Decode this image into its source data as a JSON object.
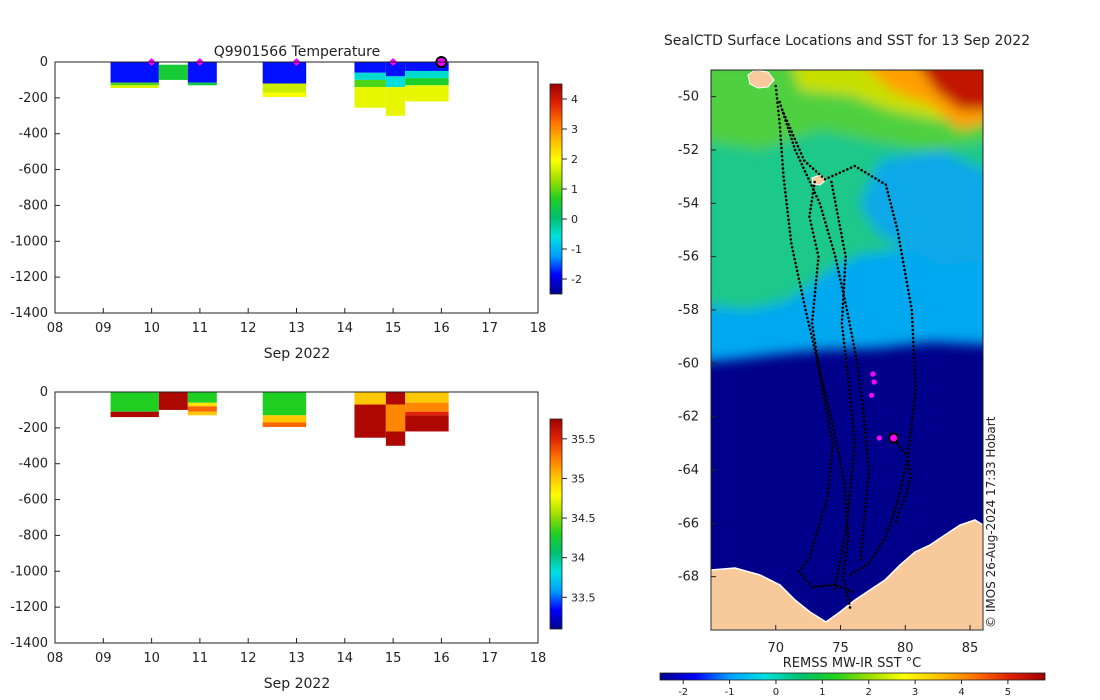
{
  "colors": {
    "land": "#f8c99a",
    "ocean_cold": "#00008b",
    "mark_magenta": "#ff00ff",
    "track": "#000000",
    "axis": "#222222",
    "ramp": [
      "#00008b",
      "#0000ff",
      "#00a0ff",
      "#00e0e0",
      "#00c070",
      "#20d020",
      "#a0e000",
      "#ffff00",
      "#ffc000",
      "#ff7000",
      "#e02000",
      "#a00000"
    ]
  },
  "chart_data": [
    {
      "type": "heatmap",
      "title": "Q9901566  Temperature",
      "xlabel": "Sep 2022",
      "ylabel": "",
      "xlim": [
        8,
        18
      ],
      "ylim": [
        -1400,
        0
      ],
      "xticks": [
        "08",
        "09",
        "10",
        "11",
        "12",
        "13",
        "14",
        "15",
        "16",
        "17",
        "18"
      ],
      "yticks": [
        "0",
        "-200",
        "-400",
        "-600",
        "-800",
        "-1000",
        "-1200",
        "-1400"
      ],
      "colorbar": {
        "range": [
          -2.5,
          4.5
        ],
        "ticks": [
          "4",
          "3",
          "2",
          "1",
          "0",
          "-1",
          "-2"
        ],
        "tick_values": [
          4,
          3,
          2,
          1,
          0,
          -1,
          -2
        ]
      },
      "profile_markers_day": [
        10,
        11,
        13,
        15,
        16
      ],
      "current_marker_day": 16,
      "profiles": [
        {
          "x0": 9.15,
          "x1": 10.15,
          "bands": [
            [
              0,
              -115,
              -1.8
            ],
            [
              -115,
              -130,
              0.9
            ],
            [
              -130,
              -145,
              1.7
            ]
          ]
        },
        {
          "x0": 10.15,
          "x1": 10.75,
          "bands": [
            [
              -15,
              -100,
              0.5
            ]
          ]
        },
        {
          "x0": 10.75,
          "x1": 11.35,
          "bands": [
            [
              0,
              -115,
              -1.8
            ],
            [
              -115,
              -130,
              0.4
            ]
          ]
        },
        {
          "x0": 12.3,
          "x1": 13.2,
          "bands": [
            [
              0,
              -120,
              -1.8
            ],
            [
              -120,
              -170,
              1.6
            ],
            [
              -170,
              -195,
              1.9
            ]
          ]
        },
        {
          "x0": 14.2,
          "x1": 14.85,
          "bands": [
            [
              0,
              -60,
              -1.8
            ],
            [
              -60,
              -100,
              -0.5
            ],
            [
              -100,
              -140,
              0.9
            ],
            [
              -140,
              -255,
              1.8
            ]
          ]
        },
        {
          "x0": 14.85,
          "x1": 15.25,
          "bands": [
            [
              0,
              -80,
              -1.8
            ],
            [
              -80,
              -140,
              -0.6
            ],
            [
              -140,
              -300,
              1.8
            ]
          ]
        },
        {
          "x0": 15.25,
          "x1": 16.15,
          "bands": [
            [
              0,
              -50,
              -1.8
            ],
            [
              -50,
              -90,
              -0.5
            ],
            [
              -90,
              -130,
              0.6
            ],
            [
              -130,
              -220,
              1.8
            ]
          ]
        }
      ]
    },
    {
      "type": "heatmap",
      "title": "",
      "xlabel": "Sep 2022",
      "ylabel": "",
      "xlim": [
        8,
        18
      ],
      "ylim": [
        -1400,
        0
      ],
      "xticks": [
        "08",
        "09",
        "10",
        "11",
        "12",
        "13",
        "14",
        "15",
        "16",
        "17",
        "18"
      ],
      "yticks": [
        "0",
        "-200",
        "-400",
        "-600",
        "-800",
        "-1000",
        "-1200",
        "-1400"
      ],
      "colorbar": {
        "range": [
          33.1,
          35.75
        ],
        "ticks": [
          "35.5",
          "35",
          "34.5",
          "34",
          "33.5"
        ],
        "tick_values": [
          35.5,
          35,
          34.5,
          34,
          33.5
        ]
      },
      "profiles": [
        {
          "x0": 9.15,
          "x1": 10.15,
          "bands": [
            [
              0,
              -110,
              34.3
            ],
            [
              -110,
              -140,
              35.7
            ]
          ]
        },
        {
          "x0": 10.15,
          "x1": 10.75,
          "bands": [
            [
              0,
              -100,
              35.7
            ]
          ]
        },
        {
          "x0": 10.75,
          "x1": 11.35,
          "bands": [
            [
              0,
              -60,
              34.3
            ],
            [
              -60,
              -80,
              34.9
            ],
            [
              -80,
              -110,
              35.3
            ],
            [
              -110,
              -130,
              35.0
            ]
          ]
        },
        {
          "x0": 12.3,
          "x1": 13.2,
          "bands": [
            [
              0,
              -130,
              34.3
            ],
            [
              -130,
              -170,
              35.0
            ],
            [
              -170,
              -195,
              35.3
            ]
          ]
        },
        {
          "x0": 14.2,
          "x1": 14.85,
          "bands": [
            [
              0,
              -70,
              35.0
            ],
            [
              -70,
              -255,
              35.7
            ]
          ]
        },
        {
          "x0": 14.85,
          "x1": 15.25,
          "bands": [
            [
              0,
              -70,
              35.7
            ],
            [
              -70,
              -220,
              35.2
            ],
            [
              -220,
              -300,
              35.7
            ]
          ]
        },
        {
          "x0": 15.25,
          "x1": 16.15,
          "bands": [
            [
              0,
              -60,
              35.0
            ],
            [
              -60,
              -110,
              35.2
            ],
            [
              -110,
              -130,
              35.5
            ],
            [
              -130,
              -220,
              35.7
            ]
          ]
        }
      ]
    },
    {
      "type": "heatmap",
      "title": "SealCTD Surface Locations and SST for 13 Sep 2022",
      "xlabel": "",
      "ylabel": "",
      "xlim": [
        65,
        86
      ],
      "ylim": [
        -70,
        -49
      ],
      "xticks": [
        "70",
        "75",
        "80",
        "85"
      ],
      "xtick_values": [
        70,
        75,
        80,
        85
      ],
      "yticks": [
        "-50",
        "-52",
        "-54",
        "-56",
        "-58",
        "-60",
        "-62",
        "-64",
        "-66",
        "-68"
      ],
      "ytick_values": [
        -50,
        -52,
        -54,
        -56,
        -58,
        -60,
        -62,
        -64,
        -66,
        -68
      ],
      "colorbar": {
        "label": "REMSS MW-IR SST °C",
        "range": [
          -2.5,
          5.8
        ],
        "ticks": [
          "-2",
          "-1",
          "0",
          "1",
          "2",
          "3",
          "4",
          "5"
        ],
        "tick_values": [
          -2,
          -1,
          0,
          1,
          2,
          3,
          4,
          5
        ]
      },
      "credit": "© IMOS 26-Aug-2024 17:33 Hobart",
      "recent_locations": [
        [
          77.5,
          -60.4
        ],
        [
          77.6,
          -60.7
        ],
        [
          77.4,
          -61.2
        ],
        [
          78,
          -62.8
        ]
      ],
      "current_location": [
        79.1,
        -62.8
      ],
      "tracks": [
        [
          [
            70,
            -49.6
          ],
          [
            70.3,
            -51
          ],
          [
            70.6,
            -53
          ],
          [
            71.2,
            -55.5
          ],
          [
            72.3,
            -58
          ],
          [
            73.5,
            -60.5
          ],
          [
            74.5,
            -62.5
          ],
          [
            75.3,
            -64.5
          ],
          [
            75.6,
            -66.5
          ],
          [
            75.2,
            -68
          ],
          [
            75.8,
            -69.3
          ]
        ],
        [
          [
            70.3,
            -50.2
          ],
          [
            71.5,
            -52
          ],
          [
            73.4,
            -54
          ],
          [
            74.6,
            -56
          ],
          [
            75.5,
            -58
          ],
          [
            76.3,
            -60
          ],
          [
            76.8,
            -62
          ],
          [
            77.2,
            -64
          ],
          [
            76.8,
            -66
          ],
          [
            76.5,
            -67.5
          ]
        ],
        [
          [
            70.5,
            -50.5
          ],
          [
            72.2,
            -52.4
          ],
          [
            73.8,
            -53.1
          ],
          [
            76.1,
            -52.6
          ],
          [
            78.5,
            -53.3
          ],
          [
            79.4,
            -55
          ],
          [
            80.5,
            -58
          ],
          [
            80.8,
            -61
          ],
          [
            80.2,
            -63.5
          ],
          [
            79.5,
            -65
          ],
          [
            78.5,
            -66.5
          ],
          [
            77.2,
            -67.5
          ],
          [
            75.5,
            -68
          ]
        ],
        [
          [
            73,
            -53.2
          ],
          [
            72.6,
            -54.5
          ],
          [
            73.3,
            -56
          ],
          [
            72.8,
            -58.5
          ],
          [
            73.6,
            -61
          ],
          [
            74.4,
            -63
          ],
          [
            74,
            -65
          ],
          [
            72.6,
            -67.3
          ],
          [
            71.8,
            -67.8
          ],
          [
            72.8,
            -68.4
          ],
          [
            74.5,
            -68.3
          ],
          [
            76.2,
            -68.6
          ]
        ],
        [
          [
            74.3,
            -53.2
          ],
          [
            75.4,
            -56
          ],
          [
            75.1,
            -58.5
          ],
          [
            75.7,
            -61
          ],
          [
            76.1,
            -63
          ],
          [
            75.5,
            -66
          ],
          [
            74.5,
            -68.6
          ]
        ],
        [
          [
            79.2,
            -62.9
          ],
          [
            80.2,
            -63.5
          ],
          [
            80.4,
            -64.3
          ],
          [
            80,
            -65
          ],
          [
            79.5,
            -65.6
          ],
          [
            79.2,
            -66.1
          ]
        ]
      ]
    }
  ]
}
